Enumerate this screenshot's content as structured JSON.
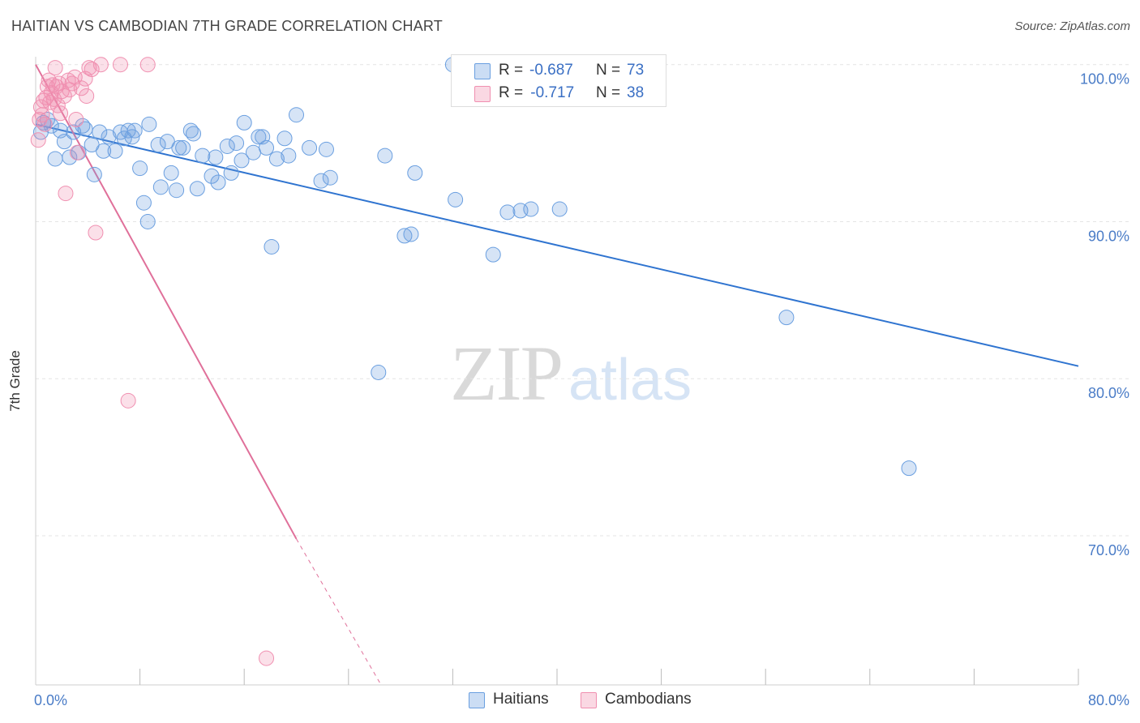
{
  "title": "HAITIAN VS CAMBODIAN 7TH GRADE CORRELATION CHART",
  "source": "Source: ZipAtlas.com",
  "watermark": {
    "zip": "ZIP",
    "atlas": "atlas"
  },
  "stats": [
    {
      "r_label": "R =",
      "r_value": "-0.687",
      "n_label": "N =",
      "n_value": "73",
      "color": "#6a9fe0"
    },
    {
      "r_label": "R =",
      "r_value": " -0.717",
      "n_label": "N =",
      "n_value": "38",
      "color": "#f08fb0"
    }
  ],
  "legend": [
    {
      "label": "Haitians",
      "color": "#6a9fe0"
    },
    {
      "label": "Cambodians",
      "color": "#f08fb0"
    }
  ],
  "chart_data": {
    "type": "scatter",
    "title": "HAITIAN VS CAMBODIAN 7TH GRADE CORRELATION CHART",
    "xlabel": "",
    "ylabel": "7th Grade",
    "xlim": [
      0,
      80
    ],
    "ylim": [
      60.5,
      100.5
    ],
    "x_tick_labels": [
      {
        "value": 0,
        "label": "0.0%"
      },
      {
        "value": 80,
        "label": "80.0%"
      }
    ],
    "y_tick_labels": [
      {
        "value": 100,
        "label": "100.0%"
      },
      {
        "value": 90,
        "label": "90.0%"
      },
      {
        "value": 80,
        "label": "80.0%"
      },
      {
        "value": 70,
        "label": "70.0%"
      }
    ],
    "y_gridlines": [
      100,
      90,
      80,
      70
    ],
    "x_minor_ticks": [
      8,
      16,
      24,
      32,
      40,
      48,
      56,
      64,
      72
    ],
    "series": [
      {
        "name": "Haitians",
        "color": "#6a9fe0",
        "points": [
          [
            0.4,
            95.7
          ],
          [
            0.6,
            96.3
          ],
          [
            0.9,
            96.5
          ],
          [
            1.2,
            96.1
          ],
          [
            1.5,
            94.0
          ],
          [
            1.9,
            95.8
          ],
          [
            2.2,
            95.1
          ],
          [
            2.6,
            94.1
          ],
          [
            2.9,
            95.7
          ],
          [
            3.3,
            94.4
          ],
          [
            3.6,
            96.1
          ],
          [
            3.8,
            95.9
          ],
          [
            4.3,
            94.9
          ],
          [
            4.5,
            93.0
          ],
          [
            4.9,
            95.7
          ],
          [
            5.2,
            94.5
          ],
          [
            5.6,
            95.4
          ],
          [
            6.1,
            94.5
          ],
          [
            6.5,
            95.7
          ],
          [
            6.8,
            95.3
          ],
          [
            7.1,
            95.8
          ],
          [
            7.4,
            95.4
          ],
          [
            7.6,
            95.8
          ],
          [
            8.0,
            93.4
          ],
          [
            8.3,
            91.2
          ],
          [
            8.6,
            90.0
          ],
          [
            8.7,
            96.2
          ],
          [
            9.4,
            94.9
          ],
          [
            9.6,
            92.2
          ],
          [
            10.1,
            95.1
          ],
          [
            10.4,
            93.1
          ],
          [
            10.8,
            92.0
          ],
          [
            11.0,
            94.7
          ],
          [
            11.3,
            94.7
          ],
          [
            11.9,
            95.8
          ],
          [
            12.1,
            95.6
          ],
          [
            12.4,
            92.1
          ],
          [
            12.8,
            94.2
          ],
          [
            13.5,
            92.9
          ],
          [
            13.8,
            94.1
          ],
          [
            14.0,
            92.5
          ],
          [
            14.7,
            94.8
          ],
          [
            15.0,
            93.1
          ],
          [
            15.4,
            95.0
          ],
          [
            15.8,
            93.9
          ],
          [
            16.0,
            96.3
          ],
          [
            16.7,
            94.4
          ],
          [
            17.1,
            95.4
          ],
          [
            17.4,
            95.4
          ],
          [
            17.7,
            94.7
          ],
          [
            18.1,
            88.4
          ],
          [
            18.5,
            94.0
          ],
          [
            19.1,
            95.3
          ],
          [
            19.4,
            94.2
          ],
          [
            20.0,
            96.8
          ],
          [
            21.0,
            94.7
          ],
          [
            21.9,
            92.6
          ],
          [
            22.3,
            94.6
          ],
          [
            22.6,
            92.8
          ],
          [
            26.3,
            80.4
          ],
          [
            26.8,
            94.2
          ],
          [
            28.3,
            89.1
          ],
          [
            28.8,
            89.2
          ],
          [
            29.1,
            93.1
          ],
          [
            32.2,
            91.4
          ],
          [
            35.1,
            87.9
          ],
          [
            36.2,
            90.6
          ],
          [
            37.2,
            90.7
          ],
          [
            38.0,
            90.8
          ],
          [
            40.2,
            90.8
          ],
          [
            57.6,
            83.9
          ],
          [
            67.0,
            74.3
          ],
          [
            32.0,
            100.0
          ]
        ]
      },
      {
        "name": "Cambodians",
        "color": "#f08fb0",
        "points": [
          [
            0.2,
            95.2
          ],
          [
            0.3,
            96.5
          ],
          [
            0.4,
            97.3
          ],
          [
            0.5,
            96.8
          ],
          [
            0.6,
            97.7
          ],
          [
            0.7,
            96.2
          ],
          [
            0.8,
            97.9
          ],
          [
            0.9,
            98.6
          ],
          [
            1.0,
            99.0
          ],
          [
            1.1,
            97.6
          ],
          [
            1.2,
            98.2
          ],
          [
            1.3,
            98.7
          ],
          [
            1.4,
            97.8
          ],
          [
            1.5,
            99.8
          ],
          [
            1.6,
            98.6
          ],
          [
            1.7,
            97.4
          ],
          [
            1.8,
            98.8
          ],
          [
            1.9,
            96.9
          ],
          [
            2.0,
            98.3
          ],
          [
            2.2,
            98.0
          ],
          [
            2.3,
            91.8
          ],
          [
            2.5,
            99.0
          ],
          [
            2.6,
            98.4
          ],
          [
            2.8,
            98.8
          ],
          [
            3.0,
            99.2
          ],
          [
            3.1,
            96.5
          ],
          [
            3.2,
            94.4
          ],
          [
            3.5,
            98.5
          ],
          [
            3.8,
            99.1
          ],
          [
            3.9,
            98.0
          ],
          [
            4.1,
            99.8
          ],
          [
            4.3,
            99.7
          ],
          [
            4.6,
            89.3
          ],
          [
            5.0,
            100.0
          ],
          [
            6.5,
            100.0
          ],
          [
            7.1,
            78.6
          ],
          [
            8.6,
            100.0
          ],
          [
            17.7,
            62.2
          ]
        ]
      }
    ],
    "trend_lines": [
      {
        "series": "Haitians",
        "color": "#2f74d0",
        "from": [
          0,
          96.2
        ],
        "to": [
          80,
          80.8
        ],
        "dashed_from": null
      },
      {
        "series": "Cambodians",
        "color": "#e0709a",
        "from": [
          0,
          100.0
        ],
        "to": [
          20.0,
          69.8
        ],
        "dashed_to": [
          26.5,
          60.5
        ]
      }
    ]
  }
}
